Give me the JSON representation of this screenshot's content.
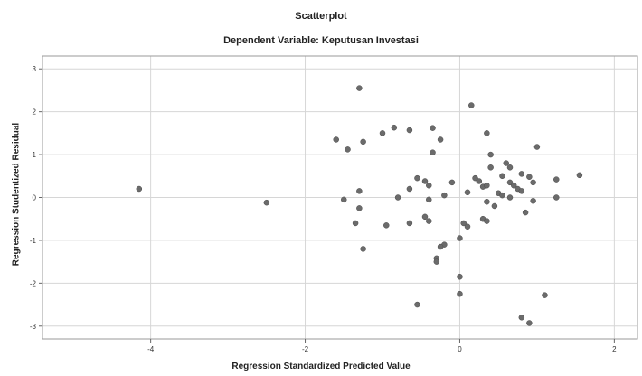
{
  "chart_data": {
    "type": "scatter",
    "title": "Scatterplot",
    "subtitle": "Dependent Variable: Keputusan Investasi",
    "xlabel": "Regression Standardized Predicted Value",
    "ylabel": "Regression Studentized Residual",
    "xlim": [
      -5.4,
      2.3
    ],
    "ylim": [
      -3.3,
      3.3
    ],
    "xticks": [
      -4,
      -2,
      0,
      2
    ],
    "yticks": [
      3,
      2,
      1,
      0,
      -1,
      -2,
      -3
    ],
    "xtick_labels": [
      "-4",
      "-2",
      "0",
      "2"
    ],
    "ytick_labels": [
      "3",
      "2",
      "1",
      "0",
      "-1",
      "-2",
      "-3"
    ],
    "grid": true,
    "marker_color": "#6b6b6b",
    "gridline_color": "#d6d6d6",
    "points": [
      [
        -4.15,
        0.2
      ],
      [
        -2.5,
        -0.12
      ],
      [
        -1.3,
        2.55
      ],
      [
        -1.6,
        1.35
      ],
      [
        -1.45,
        1.12
      ],
      [
        -1.25,
        1.3
      ],
      [
        -0.85,
        1.63
      ],
      [
        -0.65,
        1.57
      ],
      [
        -0.35,
        1.62
      ],
      [
        -1.0,
        1.5
      ],
      [
        -0.25,
        1.35
      ],
      [
        -0.35,
        1.05
      ],
      [
        -1.5,
        -0.05
      ],
      [
        -1.3,
        0.15
      ],
      [
        -1.3,
        -0.25
      ],
      [
        -1.35,
        -0.6
      ],
      [
        -1.25,
        -1.2
      ],
      [
        -0.95,
        -0.65
      ],
      [
        -0.8,
        0.0
      ],
      [
        -0.65,
        0.2
      ],
      [
        -0.55,
        0.45
      ],
      [
        -0.45,
        0.38
      ],
      [
        -0.4,
        0.28
      ],
      [
        -0.4,
        -0.05
      ],
      [
        -0.65,
        -0.6
      ],
      [
        -0.45,
        -0.45
      ],
      [
        -0.4,
        -0.55
      ],
      [
        -0.2,
        0.05
      ],
      [
        -0.1,
        0.35
      ],
      [
        -0.2,
        -1.1
      ],
      [
        -0.25,
        -1.15
      ],
      [
        -0.3,
        -1.42
      ],
      [
        -0.3,
        -1.5
      ],
      [
        0.15,
        2.15
      ],
      [
        0.0,
        -0.95
      ],
      [
        0.05,
        -0.6
      ],
      [
        0.1,
        -0.68
      ],
      [
        0.0,
        -1.85
      ],
      [
        0.0,
        -2.25
      ],
      [
        -0.55,
        -2.5
      ],
      [
        0.1,
        0.12
      ],
      [
        0.2,
        0.45
      ],
      [
        0.25,
        0.38
      ],
      [
        0.3,
        0.25
      ],
      [
        0.35,
        0.28
      ],
      [
        0.35,
        1.5
      ],
      [
        0.4,
        1.0
      ],
      [
        0.4,
        0.7
      ],
      [
        0.45,
        -0.2
      ],
      [
        0.35,
        -0.1
      ],
      [
        0.3,
        -0.5
      ],
      [
        0.35,
        -0.55
      ],
      [
        0.5,
        0.1
      ],
      [
        0.55,
        0.05
      ],
      [
        0.55,
        0.5
      ],
      [
        0.6,
        0.8
      ],
      [
        0.65,
        0.35
      ],
      [
        0.65,
        0.7
      ],
      [
        0.7,
        0.28
      ],
      [
        0.75,
        0.2
      ],
      [
        0.65,
        0.0
      ],
      [
        0.8,
        0.15
      ],
      [
        0.8,
        0.55
      ],
      [
        0.9,
        0.48
      ],
      [
        0.85,
        -0.35
      ],
      [
        0.95,
        0.35
      ],
      [
        0.95,
        -0.08
      ],
      [
        1.0,
        1.18
      ],
      [
        1.1,
        -2.28
      ],
      [
        0.8,
        -2.8
      ],
      [
        0.9,
        -2.93
      ],
      [
        1.25,
        0.42
      ],
      [
        1.25,
        0.0
      ],
      [
        1.55,
        0.52
      ]
    ]
  }
}
